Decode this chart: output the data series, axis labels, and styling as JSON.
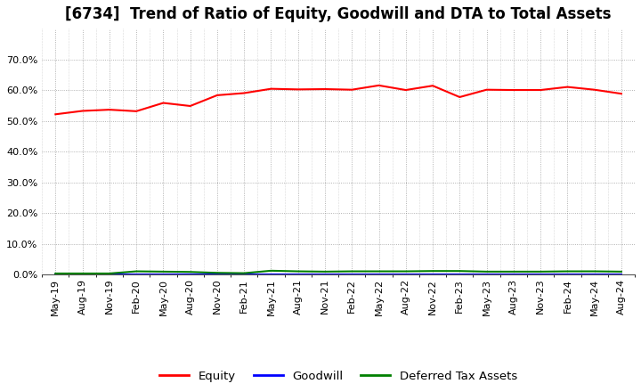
{
  "title": "[6734]  Trend of Ratio of Equity, Goodwill and DTA to Total Assets",
  "x_labels": [
    "May-19",
    "Aug-19",
    "Nov-19",
    "Feb-20",
    "May-20",
    "Aug-20",
    "Nov-20",
    "Feb-21",
    "May-21",
    "Aug-21",
    "Nov-21",
    "Feb-22",
    "May-22",
    "Aug-22",
    "Nov-22",
    "Feb-23",
    "May-23",
    "Aug-23",
    "Nov-23",
    "Feb-24",
    "May-24",
    "Aug-24"
  ],
  "equity": [
    0.521,
    0.532,
    0.536,
    0.531,
    0.558,
    0.548,
    0.583,
    0.59,
    0.604,
    0.602,
    0.603,
    0.601,
    0.615,
    0.6,
    0.614,
    0.577,
    0.601,
    0.6,
    0.6,
    0.61,
    0.601,
    0.588
  ],
  "goodwill": [
    0.0,
    0.0,
    0.0,
    0.0,
    0.0,
    0.0,
    0.0,
    0.0,
    0.0,
    0.0,
    0.0,
    0.0,
    0.0,
    0.0,
    0.0,
    0.0,
    0.0,
    0.0,
    0.0,
    0.0,
    0.0,
    0.0
  ],
  "dta": [
    0.003,
    0.003,
    0.003,
    0.01,
    0.009,
    0.008,
    0.005,
    0.004,
    0.012,
    0.01,
    0.009,
    0.01,
    0.01,
    0.01,
    0.011,
    0.011,
    0.009,
    0.009,
    0.009,
    0.01,
    0.01,
    0.009
  ],
  "equity_color": "#FF0000",
  "goodwill_color": "#0000FF",
  "dta_color": "#008000",
  "ylim": [
    0.0,
    0.8
  ],
  "yticks": [
    0.0,
    0.1,
    0.2,
    0.3,
    0.4,
    0.5,
    0.6,
    0.7
  ],
  "background_color": "#FFFFFF",
  "plot_bg_color": "#FFFFFF",
  "grid_color": "#888888",
  "legend_labels": [
    "Equity",
    "Goodwill",
    "Deferred Tax Assets"
  ],
  "title_fontsize": 12,
  "tick_fontsize": 8,
  "legend_fontsize": 9.5
}
